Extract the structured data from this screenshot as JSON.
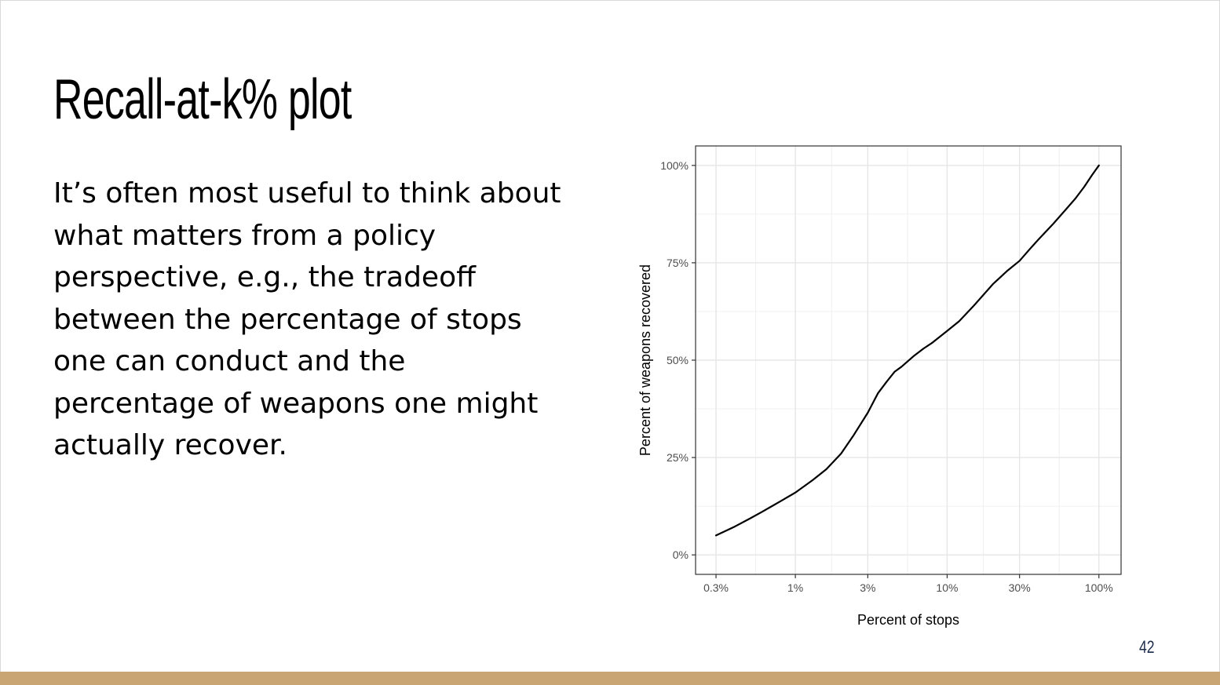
{
  "slide": {
    "title": "Recall-at-k% plot",
    "body": "It’s often most useful to think about what matters from a policy perspective, e.g., the tradeoff between the percentage of stops one can conduct and the percentage of weapons one might actually recover.",
    "page_number": "42",
    "accent_color": "#c9a574"
  },
  "chart_data": {
    "type": "line",
    "title": "",
    "xlabel": "Percent of stops",
    "ylabel": "Percent of weapons recovered",
    "x_scale": "log",
    "xlim": [
      0.22,
      140
    ],
    "ylim": [
      -5,
      105
    ],
    "x_ticks": [
      {
        "value": 0.3,
        "label": "0.3%"
      },
      {
        "value": 1,
        "label": "1%"
      },
      {
        "value": 3,
        "label": "3%"
      },
      {
        "value": 10,
        "label": "10%"
      },
      {
        "value": 30,
        "label": "30%"
      },
      {
        "value": 100,
        "label": "100%"
      }
    ],
    "y_ticks": [
      {
        "value": 0,
        "label": "0%"
      },
      {
        "value": 25,
        "label": "25%"
      },
      {
        "value": 50,
        "label": "50%"
      },
      {
        "value": 75,
        "label": "75%"
      },
      {
        "value": 100,
        "label": "100%"
      }
    ],
    "grid": true,
    "line_color": "#000000",
    "series": [
      {
        "x": [
          0.3,
          0.4,
          0.5,
          0.6,
          0.7,
          0.8,
          1.0,
          1.3,
          1.6,
          2.0,
          2.4,
          3.0,
          3.5,
          4.0,
          4.5,
          5.0,
          6.0,
          7.0,
          8.0,
          10.0,
          12.0,
          15.0,
          20.0,
          25.0,
          30.0,
          35.0,
          40.0,
          50.0,
          60.0,
          70.0,
          80.0,
          90.0,
          100.0
        ],
        "y": [
          5,
          7.3,
          9.3,
          11,
          12.5,
          13.8,
          16,
          19.2,
          22,
          26,
          30.5,
          36.5,
          41.5,
          44.5,
          47,
          48.3,
          51,
          53,
          54.5,
          57.5,
          60,
          64,
          69.5,
          73,
          75.5,
          78.5,
          81,
          85,
          88.5,
          91.5,
          94.5,
          97.5,
          100
        ]
      }
    ]
  }
}
